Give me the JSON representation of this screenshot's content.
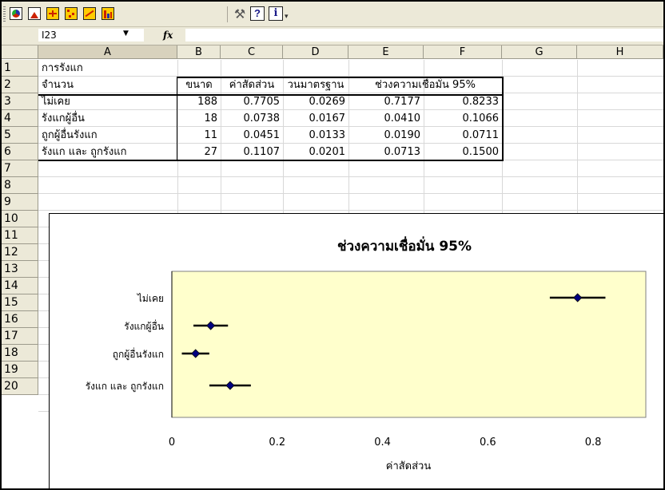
{
  "toolbar": {
    "buttons": [
      {
        "icon": "pie-chart-icon",
        "color": "#2233aa"
      },
      {
        "icon": "histogram-icon",
        "color": "#cc2200"
      },
      {
        "icon": "confidence-interval-icon",
        "color": "#cc2200"
      },
      {
        "icon": "scatter-icon",
        "color": "#cc2200"
      },
      {
        "icon": "plot-icon",
        "color": "#cc2200"
      },
      {
        "icon": "bar-chart-icon",
        "color": "#cc2200"
      }
    ],
    "help_label": "?",
    "info_label": "i"
  },
  "formula_bar": {
    "name_box": "I23",
    "fx_label": "fx",
    "value": ""
  },
  "columns": [
    "A",
    "B",
    "C",
    "D",
    "E",
    "F",
    "G",
    "H"
  ],
  "rows": [
    "1",
    "2",
    "3",
    "4",
    "5",
    "6",
    "7",
    "8",
    "9",
    "10",
    "11",
    "12",
    "13",
    "14",
    "15",
    "16",
    "17",
    "18",
    "19",
    "20"
  ],
  "sheet": {
    "title": "การรังแก",
    "headers": [
      "จำนวน",
      "ขนาด",
      "ค่าสัดส่วน",
      "วนมาตรฐาน",
      "ช่วงความเชื่อมั่น 95%"
    ],
    "rows": [
      {
        "label": "ไม่เคย",
        "n": "188",
        "p": "0.7705",
        "se": "0.0269",
        "lo": "0.7177",
        "hi": "0.8233"
      },
      {
        "label": "รังแกผู้อื่น",
        "n": "18",
        "p": "0.0738",
        "se": "0.0167",
        "lo": "0.0410",
        "hi": "0.1066"
      },
      {
        "label": "ถูกผู้อื่นรังแก",
        "n": "11",
        "p": "0.0451",
        "se": "0.0133",
        "lo": "0.0190",
        "hi": "0.0711"
      },
      {
        "label": "รังแก และ ถูกรังแก",
        "n": "27",
        "p": "0.1107",
        "se": "0.0201",
        "lo": "0.0713",
        "hi": "0.1500"
      }
    ]
  },
  "chart_data": {
    "type": "scatter",
    "title": "ช่วงความเชื่อมั่น 95%",
    "xlabel": "ค่าสัดส่วน",
    "ylabel": "",
    "xlim": [
      0,
      0.9
    ],
    "xticks": [
      "0",
      "0.2",
      "0.4",
      "0.6",
      "0.8"
    ],
    "xtick_values": [
      0,
      0.2,
      0.4,
      0.6,
      0.8
    ],
    "categories": [
      "ไม่เคย",
      "รังแกผู้อื่น",
      "ถูกผู้อื่นรังแก",
      "รังแก และ ถูกรังแก"
    ],
    "values": [
      0.7705,
      0.0738,
      0.0451,
      0.1107
    ],
    "lower": [
      0.7177,
      0.041,
      0.019,
      0.0713
    ],
    "upper": [
      0.8233,
      0.1066,
      0.0711,
      0.15
    ],
    "plot_area_color": "#ffffcc",
    "marker_color": "#000080",
    "grid": false,
    "legend": "none"
  }
}
